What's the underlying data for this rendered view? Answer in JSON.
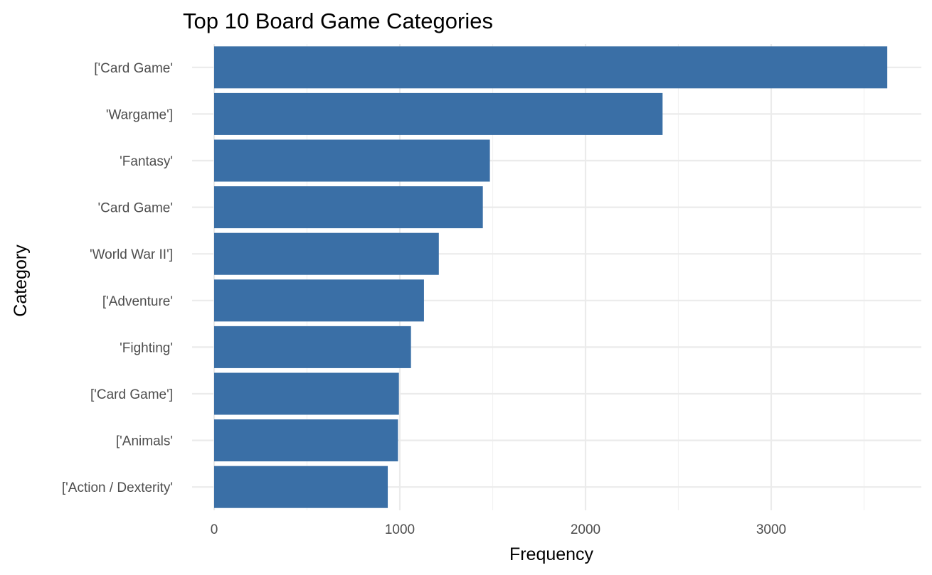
{
  "chart_data": {
    "type": "bar",
    "orientation": "horizontal",
    "title": "Top 10 Board Game Categories",
    "xlabel": "Frequency",
    "ylabel": "Category",
    "categories": [
      "['Card Game'",
      "'Wargame']",
      "'Fantasy'",
      "'Card Game'",
      "'World War II']",
      "['Adventure'",
      "'Fighting'",
      "['Card Game']",
      "['Animals'",
      "['Action / Dexterity'"
    ],
    "values": [
      3625,
      2415,
      1485,
      1447,
      1210,
      1130,
      1060,
      995,
      990,
      935
    ],
    "xlim": [
      0,
      3700
    ],
    "xticks": [
      0,
      1000,
      2000,
      3000
    ],
    "xtick_labels": [
      "0",
      "1000",
      "2000",
      "3000"
    ],
    "grid": true,
    "bar_color": "#3a6fa6"
  }
}
